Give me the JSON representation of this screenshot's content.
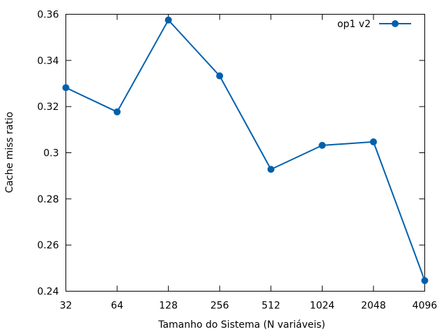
{
  "chart_data": {
    "type": "line",
    "title": "",
    "xlabel": "Tamanho do Sistema (N variáveis)",
    "ylabel": "Cache miss ratio",
    "categories": [
      "32",
      "64",
      "128",
      "256",
      "512",
      "1024",
      "2048",
      "4096"
    ],
    "x_scale": "log2",
    "ylim": [
      0.24,
      0.36
    ],
    "yticks": [
      "0.24",
      "0.26",
      "0.28",
      "0.3",
      "0.32",
      "0.34",
      "0.36"
    ],
    "grid": false,
    "legend": "top-right",
    "series": [
      {
        "name": "op1 v2",
        "color": "#0060ad",
        "marker": "filled-circle",
        "values": [
          0.3282,
          0.3177,
          0.3575,
          0.3333,
          0.2928,
          0.3032,
          0.3047,
          0.2446
        ]
      }
    ]
  }
}
